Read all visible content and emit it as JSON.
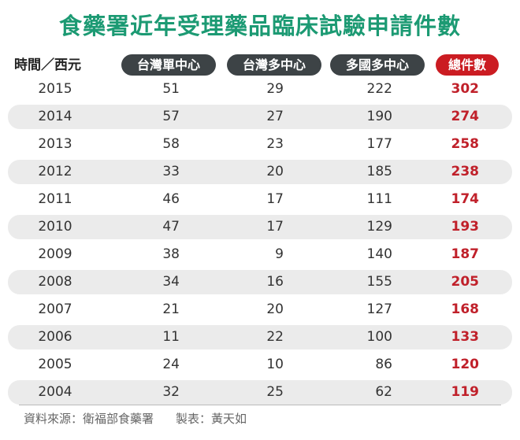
{
  "title": "食藥署近年受理藥品臨床試驗申請件數",
  "header": {
    "row_label": "時間／西元",
    "columns": [
      "台灣單中心",
      "台灣多中心",
      "多國多中心",
      "總件數"
    ]
  },
  "colors": {
    "title": "#1c9a73",
    "pill_dark": "#3d4346",
    "pill_total": "#cb1c22",
    "total_text": "#c0202a",
    "stripe": "#ebebeb"
  },
  "rows": [
    {
      "year": "2015",
      "taiwan_single": "51",
      "taiwan_multi": "29",
      "intl_multi": "222",
      "total": "302"
    },
    {
      "year": "2014",
      "taiwan_single": "57",
      "taiwan_multi": "27",
      "intl_multi": "190",
      "total": "274"
    },
    {
      "year": "2013",
      "taiwan_single": "58",
      "taiwan_multi": "23",
      "intl_multi": "177",
      "total": "258"
    },
    {
      "year": "2012",
      "taiwan_single": "33",
      "taiwan_multi": "20",
      "intl_multi": "185",
      "total": "238"
    },
    {
      "year": "2011",
      "taiwan_single": "46",
      "taiwan_multi": "17",
      "intl_multi": "111",
      "total": "174"
    },
    {
      "year": "2010",
      "taiwan_single": "47",
      "taiwan_multi": "17",
      "intl_multi": "129",
      "total": "193"
    },
    {
      "year": "2009",
      "taiwan_single": "38",
      "taiwan_multi": "9",
      "intl_multi": "140",
      "total": "187"
    },
    {
      "year": "2008",
      "taiwan_single": "34",
      "taiwan_multi": "16",
      "intl_multi": "155",
      "total": "205"
    },
    {
      "year": "2007",
      "taiwan_single": "21",
      "taiwan_multi": "20",
      "intl_multi": "127",
      "total": "168"
    },
    {
      "year": "2006",
      "taiwan_single": "11",
      "taiwan_multi": "22",
      "intl_multi": "100",
      "total": "133"
    },
    {
      "year": "2005",
      "taiwan_single": "24",
      "taiwan_multi": "10",
      "intl_multi": "86",
      "total": "120"
    },
    {
      "year": "2004",
      "taiwan_single": "32",
      "taiwan_multi": "25",
      "intl_multi": "62",
      "total": "119"
    }
  ],
  "footer": {
    "source": "資料來源：衛福部食藥署",
    "author": "製表：黃天如"
  }
}
